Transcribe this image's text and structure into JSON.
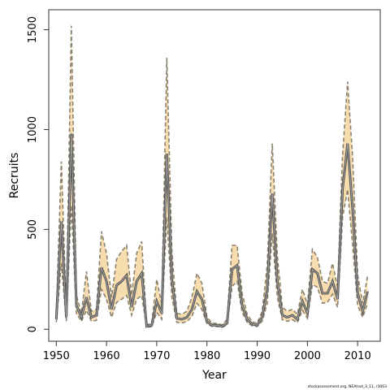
{
  "chart_data": {
    "type": "line",
    "title": "",
    "xlabel": "Year",
    "ylabel": "Recruits",
    "xlim": [
      1948.5,
      2014.5
    ],
    "ylim": [
      -60,
      1600
    ],
    "x_ticks": [
      1950,
      1960,
      1970,
      1980,
      1990,
      2000,
      2010
    ],
    "y_ticks": [
      0,
      500,
      1000,
      1500
    ],
    "grid": false,
    "legend": "none",
    "credit": "stockassessment.org, NEAhad_3_11, r3063",
    "colors": {
      "band_fill": "#f7dcae",
      "bound_line": "#8a8270",
      "estimate_line": "#555555",
      "estimate_line_light": "#aaaaaa",
      "frame": "#333333"
    },
    "series": [
      {
        "role": "estimate",
        "x": [
          1950,
          1951,
          1952,
          1953,
          1954,
          1955,
          1956,
          1957,
          1958,
          1959,
          1960,
          1961,
          1962,
          1963,
          1964,
          1965,
          1966,
          1967,
          1968,
          1969,
          1970,
          1971,
          1972,
          1973,
          1974,
          1975,
          1976,
          1977,
          1978,
          1979,
          1980,
          1981,
          1982,
          1983,
          1984,
          1985,
          1986,
          1987,
          1988,
          1989,
          1990,
          1991,
          1992,
          1993,
          1994,
          1995,
          1996,
          1997,
          1998,
          1999,
          2000,
          2001,
          2002,
          2003,
          2004,
          2005,
          2006,
          2007,
          2008,
          2009,
          2010,
          2011,
          2012
        ],
        "values": [
          50,
          540,
          60,
          980,
          120,
          60,
          160,
          60,
          70,
          310,
          240,
          100,
          220,
          240,
          270,
          110,
          240,
          280,
          15,
          20,
          140,
          80,
          880,
          250,
          55,
          50,
          60,
          100,
          190,
          150,
          40,
          20,
          20,
          15,
          30,
          300,
          320,
          120,
          50,
          25,
          20,
          60,
          200,
          680,
          240,
          70,
          60,
          70,
          50,
          140,
          80,
          300,
          280,
          180,
          180,
          240,
          150,
          700,
          930,
          600,
          180,
          90,
          190
        ]
      },
      {
        "role": "upper",
        "x": [
          1950,
          1951,
          1952,
          1953,
          1954,
          1955,
          1956,
          1957,
          1958,
          1959,
          1960,
          1961,
          1962,
          1963,
          1964,
          1965,
          1966,
          1967,
          1968,
          1969,
          1970,
          1971,
          1972,
          1973,
          1974,
          1975,
          1976,
          1977,
          1978,
          1979,
          1980,
          1981,
          1982,
          1983,
          1984,
          1985,
          1986,
          1987,
          1988,
          1989,
          1990,
          1991,
          1992,
          1993,
          1994,
          1995,
          1996,
          1997,
          1998,
          1999,
          2000,
          2001,
          2002,
          2003,
          2004,
          2005,
          2006,
          2007,
          2008,
          2009,
          2010,
          2011,
          2012
        ],
        "values": [
          80,
          840,
          90,
          1520,
          170,
          80,
          290,
          90,
          100,
          490,
          380,
          160,
          350,
          390,
          420,
          170,
          380,
          440,
          22,
          30,
          250,
          125,
          1360,
          390,
          80,
          75,
          90,
          160,
          280,
          230,
          62,
          30,
          30,
          22,
          50,
          420,
          420,
          180,
          75,
          37,
          30,
          90,
          320,
          930,
          370,
          110,
          90,
          100,
          75,
          200,
          125,
          400,
          360,
          240,
          230,
          330,
          210,
          870,
          1240,
          860,
          270,
          130,
          270
        ]
      },
      {
        "role": "lower",
        "x": [
          1950,
          1951,
          1952,
          1953,
          1954,
          1955,
          1956,
          1957,
          1958,
          1959,
          1960,
          1961,
          1962,
          1963,
          1964,
          1965,
          1966,
          1967,
          1968,
          1969,
          1970,
          1971,
          1972,
          1973,
          1974,
          1975,
          1976,
          1977,
          1978,
          1979,
          1980,
          1981,
          1982,
          1983,
          1984,
          1985,
          1986,
          1987,
          1988,
          1989,
          1990,
          1991,
          1992,
          1993,
          1994,
          1995,
          1996,
          1997,
          1998,
          1999,
          2000,
          2001,
          2002,
          2003,
          2004,
          2005,
          2006,
          2007,
          2008,
          2009,
          2010,
          2011,
          2012
        ],
        "values": [
          35,
          330,
          40,
          620,
          80,
          40,
          95,
          40,
          45,
          200,
          150,
          60,
          135,
          150,
          170,
          70,
          150,
          170,
          10,
          13,
          85,
          50,
          560,
          160,
          35,
          32,
          38,
          65,
          130,
          100,
          28,
          14,
          14,
          10,
          20,
          215,
          240,
          85,
          35,
          17,
          14,
          40,
          130,
          480,
          160,
          48,
          40,
          48,
          33,
          95,
          55,
          225,
          210,
          130,
          135,
          175,
          110,
          560,
          700,
          420,
          120,
          60,
          130
        ]
      }
    ]
  }
}
